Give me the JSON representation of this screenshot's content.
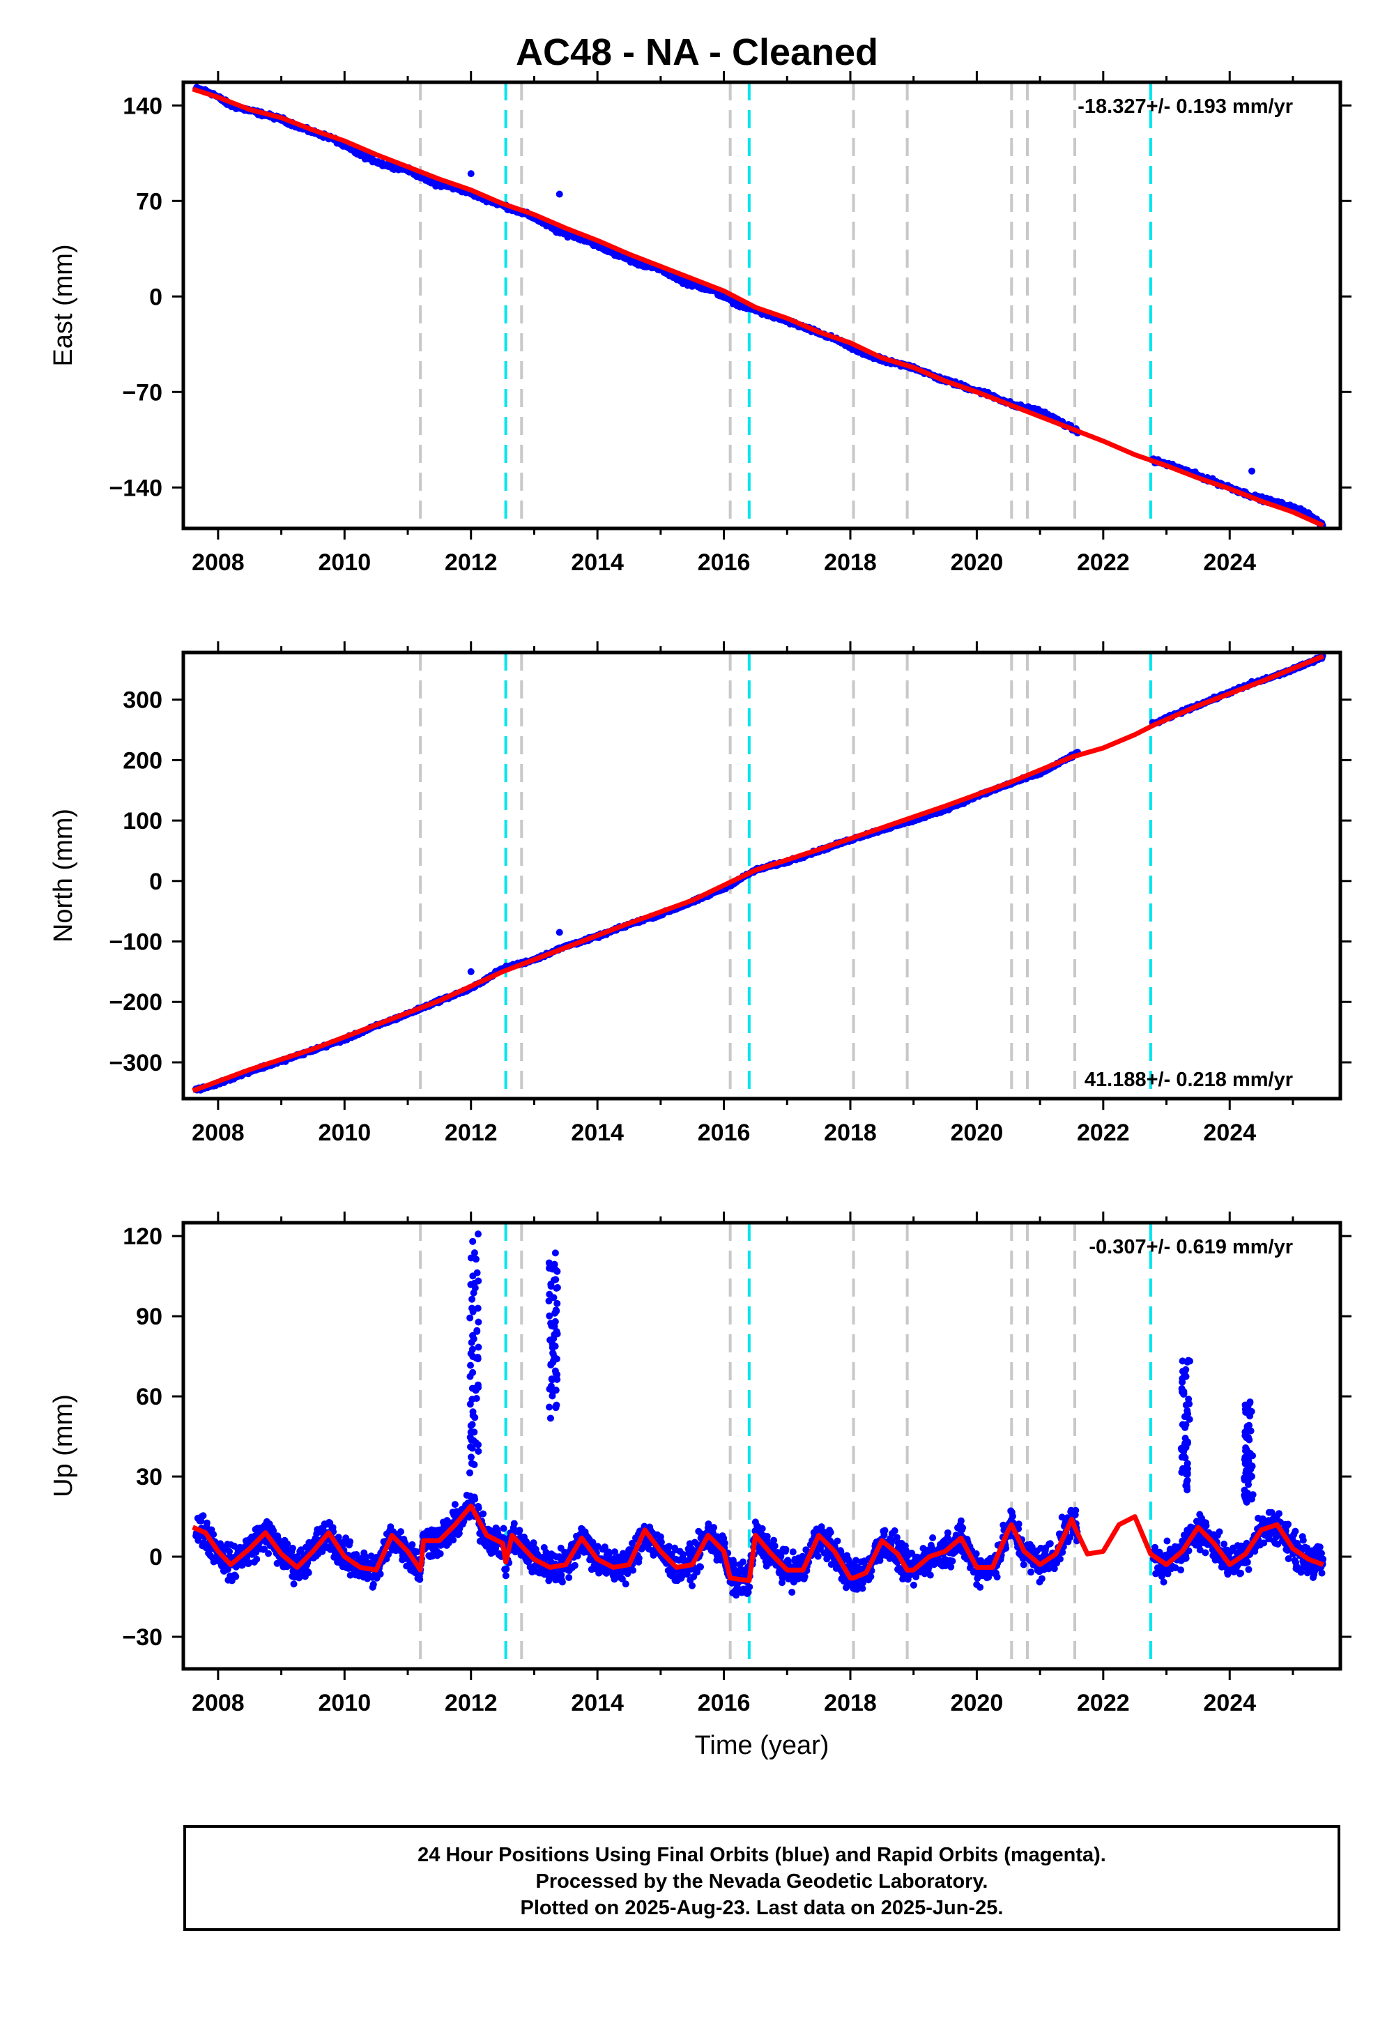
{
  "title": "AC48  - NA - Cleaned",
  "xlabel": "Time (year)",
  "footer": {
    "line1": "24 Hour Positions Using Final Orbits (blue) and Rapid Orbits (magenta).",
    "line2": "Processed by the Nevada Geodetic Laboratory.",
    "line3": "Plotted on 2025-Aug-23. Last data on 2025-Jun-25."
  },
  "colors": {
    "data_points": "#0000ff",
    "model_fit": "#ff0000",
    "equipment_change": "#c8c8c8",
    "earthquake_event": "#00e5ee"
  },
  "chart_data": [
    {
      "type": "scatter",
      "panel": "east",
      "ylabel": "East (mm)",
      "xlim": [
        2007.45,
        2025.75
      ],
      "ylim": [
        -170,
        157
      ],
      "xticks": [
        2008,
        2010,
        2012,
        2014,
        2016,
        2018,
        2020,
        2022,
        2024
      ],
      "yticks": [
        -140,
        -70,
        0,
        70,
        140
      ],
      "ytick_labels": [
        "−140",
        "−70",
        "0",
        "70",
        "140"
      ],
      "rate_label": "-18.327+/- 0.193 mm/yr",
      "rate_position": "top-right",
      "gray_lines": [
        2011.2,
        2012.8,
        2016.1,
        2018.05,
        2018.9,
        2020.55,
        2020.8,
        2021.55
      ],
      "cyan_lines": [
        2012.55,
        2016.4,
        2022.75
      ],
      "series": [
        {
          "kind": "points",
          "x": [
            2007.7,
            2007.9,
            2008.2,
            2008.6,
            2009.0,
            2009.4,
            2009.8,
            2010.2,
            2010.6,
            2011.0,
            2011.4,
            2011.8,
            2012.2,
            2012.6,
            2013.0,
            2013.4,
            2013.8,
            2014.2,
            2014.6,
            2015.0,
            2015.4,
            2015.8,
            2016.2,
            2016.6,
            2017.0,
            2017.4,
            2017.8,
            2018.2,
            2018.6,
            2019.0,
            2019.4,
            2019.8,
            2020.2,
            2020.6,
            2021.0,
            2021.4,
            2021.6,
            2022.8,
            2023.2,
            2023.6,
            2024.0,
            2024.4,
            2024.8,
            2025.2,
            2025.48
          ],
          "y": [
            152,
            149,
            140,
            135,
            130,
            122,
            116,
            105,
            97,
            93,
            83,
            79,
            72,
            65,
            58,
            47,
            42,
            33,
            25,
            20,
            10,
            5,
            -5,
            -12,
            -18,
            -25,
            -32,
            -42,
            -48,
            -52,
            -60,
            -66,
            -72,
            -80,
            -84,
            -94,
            -99,
            -120,
            -126,
            -133,
            -140,
            -147,
            -152,
            -158,
            -168
          ]
        },
        {
          "kind": "model",
          "x": [
            2007.6,
            2008.0,
            2008.5,
            2009.0,
            2009.5,
            2010.0,
            2010.5,
            2011.0,
            2011.5,
            2012.0,
            2012.5,
            2013.0,
            2013.5,
            2014.0,
            2014.5,
            2015.0,
            2015.5,
            2016.0,
            2016.5,
            2017.0,
            2017.5,
            2018.0,
            2018.5,
            2019.0,
            2019.5,
            2020.0,
            2020.5,
            2021.0,
            2021.5,
            2022.0,
            2022.5,
            2023.0,
            2023.5,
            2024.0,
            2024.5,
            2025.0,
            2025.48
          ],
          "y": [
            152,
            146,
            137,
            131,
            122,
            114,
            104,
            95,
            86,
            78,
            68,
            60,
            50,
            41,
            31,
            22,
            13,
            4,
            -8,
            -16,
            -26,
            -34,
            -45,
            -52,
            -62,
            -70,
            -79,
            -88,
            -97,
            -106,
            -116,
            -124,
            -133,
            -141,
            -150,
            -158,
            -168
          ]
        }
      ]
    },
    {
      "type": "scatter",
      "panel": "north",
      "ylabel": "North (mm)",
      "xlim": [
        2007.45,
        2025.75
      ],
      "ylim": [
        -360,
        378
      ],
      "xticks": [
        2008,
        2010,
        2012,
        2014,
        2016,
        2018,
        2020,
        2022,
        2024
      ],
      "yticks": [
        -300,
        -200,
        -100,
        0,
        100,
        200,
        300
      ],
      "ytick_labels": [
        "−300",
        "−200",
        "−100",
        "0",
        "100",
        "200",
        "300"
      ],
      "rate_label": "41.188+/- 0.218 mm/yr",
      "rate_position": "bottom-right",
      "gray_lines": [
        2011.2,
        2012.8,
        2016.1,
        2018.05,
        2018.9,
        2020.55,
        2020.8,
        2021.55
      ],
      "cyan_lines": [
        2012.55,
        2016.4,
        2022.75
      ],
      "series": [
        {
          "kind": "points",
          "x": [
            2007.7,
            2008.0,
            2008.5,
            2009.0,
            2009.5,
            2010.0,
            2010.5,
            2011.0,
            2011.5,
            2012.0,
            2012.5,
            2013.0,
            2013.5,
            2014.0,
            2014.5,
            2015.0,
            2015.5,
            2016.0,
            2016.5,
            2017.0,
            2017.5,
            2018.0,
            2018.5,
            2019.0,
            2019.5,
            2020.0,
            2020.5,
            2021.0,
            2021.6,
            2022.8,
            2023.2,
            2023.6,
            2024.0,
            2024.4,
            2024.8,
            2025.2,
            2025.48
          ],
          "y": [
            -345,
            -335,
            -315,
            -298,
            -280,
            -262,
            -240,
            -220,
            -198,
            -178,
            -145,
            -130,
            -108,
            -92,
            -72,
            -55,
            -35,
            -12,
            18,
            32,
            50,
            68,
            85,
            100,
            118,
            140,
            160,
            178,
            212,
            260,
            278,
            295,
            312,
            328,
            342,
            358,
            372
          ]
        },
        {
          "kind": "model",
          "x": [
            2007.6,
            2008.5,
            2009.5,
            2010.5,
            2011.5,
            2012.5,
            2013.5,
            2014.5,
            2015.5,
            2016.5,
            2017.5,
            2018.5,
            2019.5,
            2020.5,
            2021.5,
            2022.0,
            2022.5,
            2022.8,
            2023.5,
            2024.5,
            2025.48
          ],
          "y": [
            -347,
            -312,
            -278,
            -238,
            -198,
            -150,
            -110,
            -70,
            -32,
            18,
            52,
            88,
            124,
            162,
            205,
            220,
            242,
            258,
            290,
            330,
            372
          ]
        }
      ]
    },
    {
      "type": "scatter",
      "panel": "up",
      "ylabel": "Up (mm)",
      "xlim": [
        2007.45,
        2025.75
      ],
      "ylim": [
        -42,
        125
      ],
      "xticks": [
        2008,
        2010,
        2012,
        2014,
        2016,
        2018,
        2020,
        2022,
        2024
      ],
      "yticks": [
        -30,
        0,
        30,
        60,
        90,
        120
      ],
      "ytick_labels": [
        "−30",
        "0",
        "30",
        "60",
        "90",
        "120"
      ],
      "rate_label": "-0.307+/- 0.619 mm/yr",
      "rate_position": "top-right",
      "gray_lines": [
        2011.2,
        2012.8,
        2016.1,
        2018.05,
        2018.9,
        2020.55,
        2020.8,
        2021.55
      ],
      "cyan_lines": [
        2012.55,
        2016.4,
        2022.75
      ],
      "seasonal_amplitude_mm": 8,
      "outlier_bursts": [
        {
          "x": 2012.05,
          "y_min": 30,
          "y_max": 122
        },
        {
          "x": 2013.3,
          "y_min": 50,
          "y_max": 115
        },
        {
          "x": 2023.3,
          "y_min": 25,
          "y_max": 74
        },
        {
          "x": 2024.3,
          "y_min": 20,
          "y_max": 60
        }
      ],
      "series": [
        {
          "kind": "model",
          "x": [
            2007.6,
            2007.8,
            2008.0,
            2008.2,
            2008.5,
            2008.75,
            2009.0,
            2009.25,
            2009.5,
            2009.75,
            2010.0,
            2010.25,
            2010.5,
            2010.75,
            2011.0,
            2011.2,
            2011.25,
            2011.5,
            2011.75,
            2012.0,
            2012.25,
            2012.5,
            2012.55,
            2012.65,
            2012.8,
            2013.0,
            2013.25,
            2013.5,
            2013.75,
            2014.0,
            2014.25,
            2014.5,
            2014.75,
            2015.0,
            2015.25,
            2015.5,
            2015.75,
            2016.0,
            2016.1,
            2016.4,
            2016.5,
            2016.75,
            2017.0,
            2017.25,
            2017.5,
            2017.75,
            2018.0,
            2018.05,
            2018.25,
            2018.5,
            2018.75,
            2018.9,
            2019.0,
            2019.25,
            2019.5,
            2019.75,
            2020.0,
            2020.25,
            2020.5,
            2020.55,
            2020.75,
            2020.8,
            2021.0,
            2021.25,
            2021.5,
            2021.55,
            2021.75,
            2022.0,
            2022.25,
            2022.5,
            2022.75,
            2023.0,
            2023.25,
            2023.5,
            2023.75,
            2024.0,
            2024.25,
            2024.5,
            2024.75,
            2025.0,
            2025.25,
            2025.48
          ],
          "y": [
            11,
            9,
            2,
            -3,
            3,
            9,
            1,
            -4,
            2,
            9,
            0,
            -4,
            -5,
            8,
            2,
            -5,
            6,
            6,
            12,
            19,
            8,
            5,
            -2,
            8,
            4,
            -1,
            -4,
            -3,
            7,
            -1,
            -4,
            -3,
            10,
            2,
            -4,
            -3,
            8,
            2,
            -8,
            -9,
            8,
            1,
            -5,
            -5,
            8,
            2,
            -8,
            -8,
            -6,
            6,
            1,
            -5,
            -5,
            0,
            2,
            7,
            -4,
            -4,
            10,
            12,
            2,
            1,
            -3,
            1,
            14,
            11,
            1,
            2,
            12,
            15,
            1,
            -3,
            2,
            11,
            5,
            -3,
            1,
            10,
            12,
            3,
            -1,
            -3
          ]
        }
      ]
    }
  ]
}
